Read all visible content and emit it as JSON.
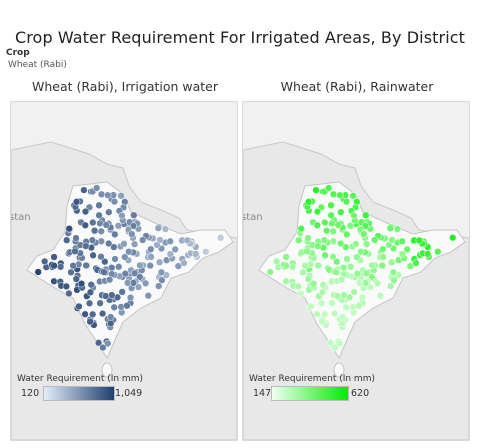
{
  "title": "Crop Water Requirement For Irrigated Areas, By District",
  "filter": {
    "label": "Crop",
    "value": "Wheat (Rabi)"
  },
  "maps": [
    {
      "pane_title": "Wheat (Rabi), Irrigation water",
      "neighbor_label": "stan",
      "legend": {
        "title": "Water Requirement (In mm)",
        "min": "120",
        "max": "1,049",
        "color_low": "#e3eefa",
        "color_high": "#1f3f6e"
      }
    },
    {
      "pane_title": "Wheat (Rabi), Rainwater",
      "neighbor_label": "stan",
      "legend": {
        "title": "Water Requirement (In mm)",
        "min": "147",
        "max": "620",
        "color_low": "#f0fff0",
        "color_high": "#00ee00"
      }
    }
  ]
}
